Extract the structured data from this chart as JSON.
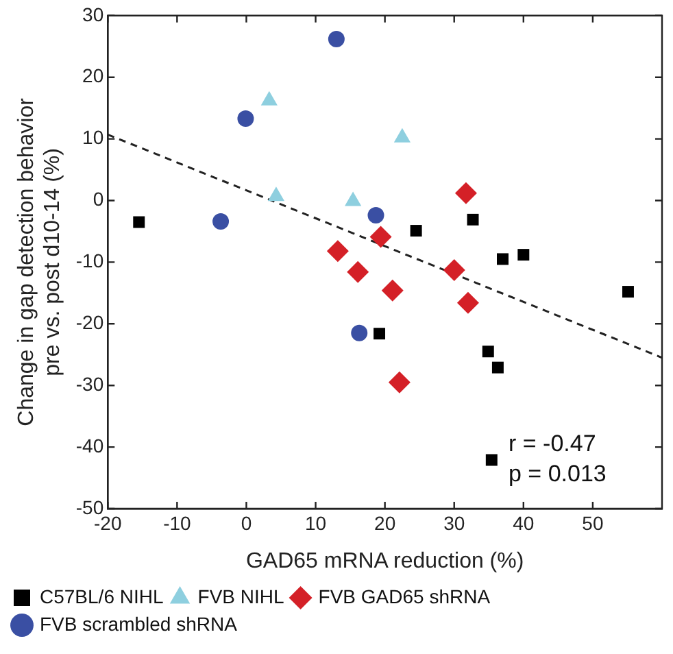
{
  "chart_data": {
    "type": "scatter",
    "xlabel": "GAD65 mRNA reduction (%)",
    "ylabel": "Change in gap detection behavior\npre vs. post d10-14 (%)",
    "xlim": [
      -20,
      60
    ],
    "xticks": [
      -20,
      -10,
      0,
      10,
      20,
      30,
      40,
      50
    ],
    "ylim": [
      -50,
      30
    ],
    "yticks": [
      -50,
      -40,
      -30,
      -20,
      -10,
      0,
      10,
      20,
      30
    ],
    "grid": false,
    "legend": "bottom",
    "annotations": [
      "r = -0.47",
      "p = 0.013"
    ],
    "series": [
      {
        "name": "C57BL/6 NIHL",
        "color": "#000000",
        "marker": "square",
        "x": [
          -15.5,
          19.2,
          24.5,
          32.7,
          37.0,
          40.0,
          34.9,
          36.3,
          35.4,
          55.1
        ],
        "values": [
          -3.5,
          -21.6,
          -4.9,
          -3.1,
          -9.5,
          -8.8,
          -24.5,
          -27.1,
          -42.1,
          -14.8
        ]
      },
      {
        "name": "FVB NIHL",
        "color": "#8ecfdf",
        "marker": "triangle",
        "x": [
          3.3,
          22.5,
          4.3,
          15.4
        ],
        "values": [
          16.2,
          10.2,
          0.7,
          -0.1
        ]
      },
      {
        "name": "FVB GAD65 shRNA",
        "color": "#d42027",
        "marker": "diamond",
        "x": [
          31.7,
          13.2,
          16.1,
          19.4,
          21.1,
          22.1,
          30.0,
          32.0
        ],
        "values": [
          1.2,
          -8.2,
          -11.6,
          -5.9,
          -14.6,
          -29.5,
          -11.3,
          -16.6
        ]
      },
      {
        "name": "FVB scrambled shRNA",
        "color": "#3a4fa3",
        "marker": "circle",
        "x": [
          13.0,
          -0.1,
          -3.7,
          18.7,
          16.3
        ],
        "values": [
          26.2,
          13.3,
          -3.4,
          -2.4,
          -21.5
        ]
      },
      {
        "type": "line",
        "color": "#222222",
        "marker": "none",
        "line_style": "dashed",
        "x": [
          -20,
          60
        ],
        "values": [
          10.7,
          -25.5
        ]
      }
    ]
  }
}
